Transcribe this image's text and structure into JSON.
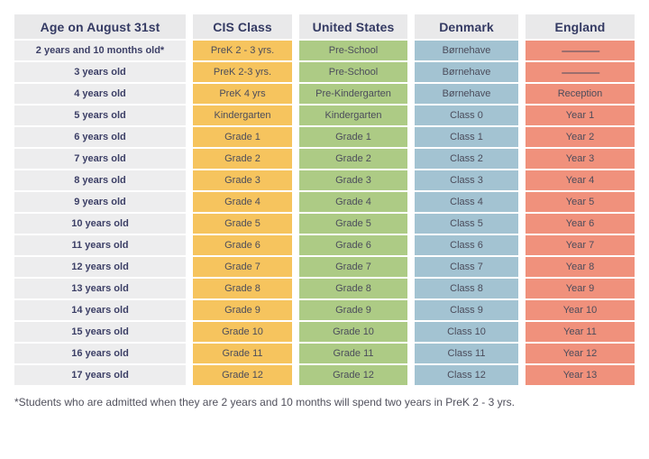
{
  "chart_data": {
    "type": "table",
    "title": "School year / grade equivalence by age",
    "columns": [
      "Age on August 31st",
      "CIS Class",
      "United States",
      "Denmark",
      "England"
    ],
    "rows": [
      [
        "2 years and 10 months old*",
        "PreK 2 - 3 yrs.",
        "Pre-School",
        "Børnehave",
        "———"
      ],
      [
        "3 years old",
        "PreK 2-3 yrs.",
        "Pre-School",
        "Børnehave",
        "———"
      ],
      [
        "4 years old",
        "PreK 4 yrs",
        "Pre-Kindergarten",
        "Børnehave",
        "Reception"
      ],
      [
        "5 years old",
        "Kindergarten",
        "Kindergarten",
        "Class 0",
        "Year 1"
      ],
      [
        "6 years old",
        "Grade 1",
        "Grade 1",
        "Class 1",
        "Year 2"
      ],
      [
        "7 years old",
        "Grade 2",
        "Grade 2",
        "Class 2",
        "Year 3"
      ],
      [
        "8 years old",
        "Grade 3",
        "Grade 3",
        "Class 3",
        "Year 4"
      ],
      [
        "9 years old",
        "Grade 4",
        "Grade 4",
        "Class 4",
        "Year 5"
      ],
      [
        "10 years old",
        "Grade 5",
        "Grade 5",
        "Class 5",
        "Year 6"
      ],
      [
        "11 years old",
        "Grade 6",
        "Grade 6",
        "Class 6",
        "Year 7"
      ],
      [
        "12 years old",
        "Grade 7",
        "Grade 7",
        "Class 7",
        "Year 8"
      ],
      [
        "13 years old",
        "Grade 8",
        "Grade 8",
        "Class 8",
        "Year 9"
      ],
      [
        "14 years old",
        "Grade 9",
        "Grade 9",
        "Class 9",
        "Year 10"
      ],
      [
        "15 years old",
        "Grade 10",
        "Grade 10",
        "Class 10",
        "Year 11"
      ],
      [
        "16 years old",
        "Grade 11",
        "Grade 11",
        "Class 11",
        "Year 12"
      ],
      [
        "17 years old",
        "Grade 12",
        "Grade 12",
        "Class 12",
        "Year 13"
      ]
    ],
    "footnote": "*Students who are admitted when they are 2 years and 10 months will spend two years in PreK 2 - 3 yrs.",
    "layout": "header row + 16 data rows, grid off, white gaps between color-coded columns"
  },
  "colors": {
    "header_bg": "#e9e9ea",
    "age_column_bg": "#ededee",
    "cis_column_bg": "#f6c45e",
    "united_states_column_bg": "#adcb85",
    "denmark_column_bg": "#a3c3d2",
    "england_column_bg": "#f0917c",
    "header_text": "#343a63",
    "cell_text": "#4b4c5b",
    "footnote_text": "#50505c"
  }
}
